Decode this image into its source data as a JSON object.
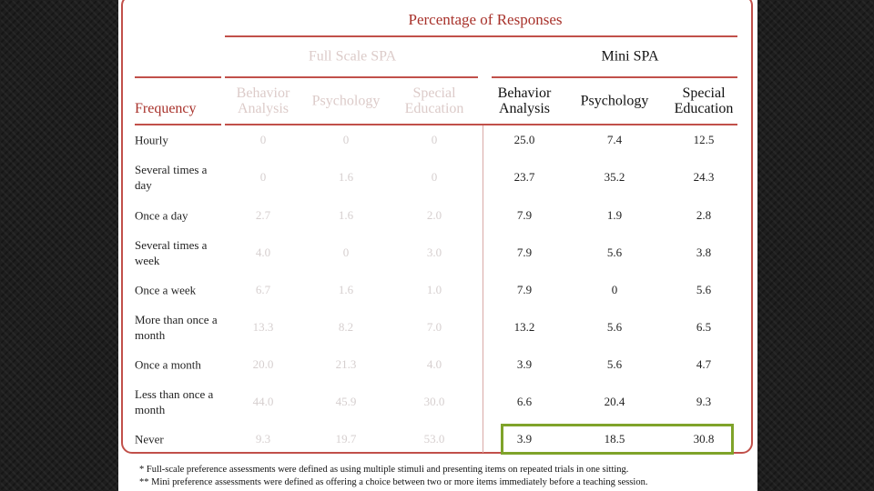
{
  "table": {
    "title": "Percentage of Responses",
    "groups": [
      "Full Scale SPA",
      "Mini SPA"
    ],
    "row_header": "Frequency",
    "columns": [
      "Behavior Analysis",
      "Psychology",
      "Special Education",
      "Behavior Analysis",
      "Psychology",
      "Special Education"
    ],
    "rows": [
      [
        "Hourly",
        "0",
        "0",
        "0",
        "25.0",
        "7.4",
        "12.5"
      ],
      [
        "Several times a day",
        "0",
        "1.6",
        "0",
        "23.7",
        "35.2",
        "24.3"
      ],
      [
        "Once a day",
        "2.7",
        "1.6",
        "2.0",
        "7.9",
        "1.9",
        "2.8"
      ],
      [
        "Several times a week",
        "4.0",
        "0",
        "3.0",
        "7.9",
        "5.6",
        "3.8"
      ],
      [
        "Once a week",
        "6.7",
        "1.6",
        "1.0",
        "7.9",
        "0",
        "5.6"
      ],
      [
        "More than once a month",
        "13.3",
        "8.2",
        "7.0",
        "13.2",
        "5.6",
        "6.5"
      ],
      [
        "Once a month",
        "20.0",
        "21.3",
        "4.0",
        "3.9",
        "5.6",
        "4.7"
      ],
      [
        "Less than once a month",
        "44.0",
        "45.9",
        "30.0",
        "6.6",
        "20.4",
        "9.3"
      ],
      [
        "Never",
        "9.3",
        "19.7",
        "53.0",
        "3.9",
        "18.5",
        "30.8"
      ]
    ],
    "footnotes": [
      "* Full-scale preference assessments were defined as using multiple stimuli and presenting items on repeated trials in one sitting.",
      "** Mini preference assessments were defined as offering a choice between two or more items immediately before a teaching session."
    ]
  }
}
